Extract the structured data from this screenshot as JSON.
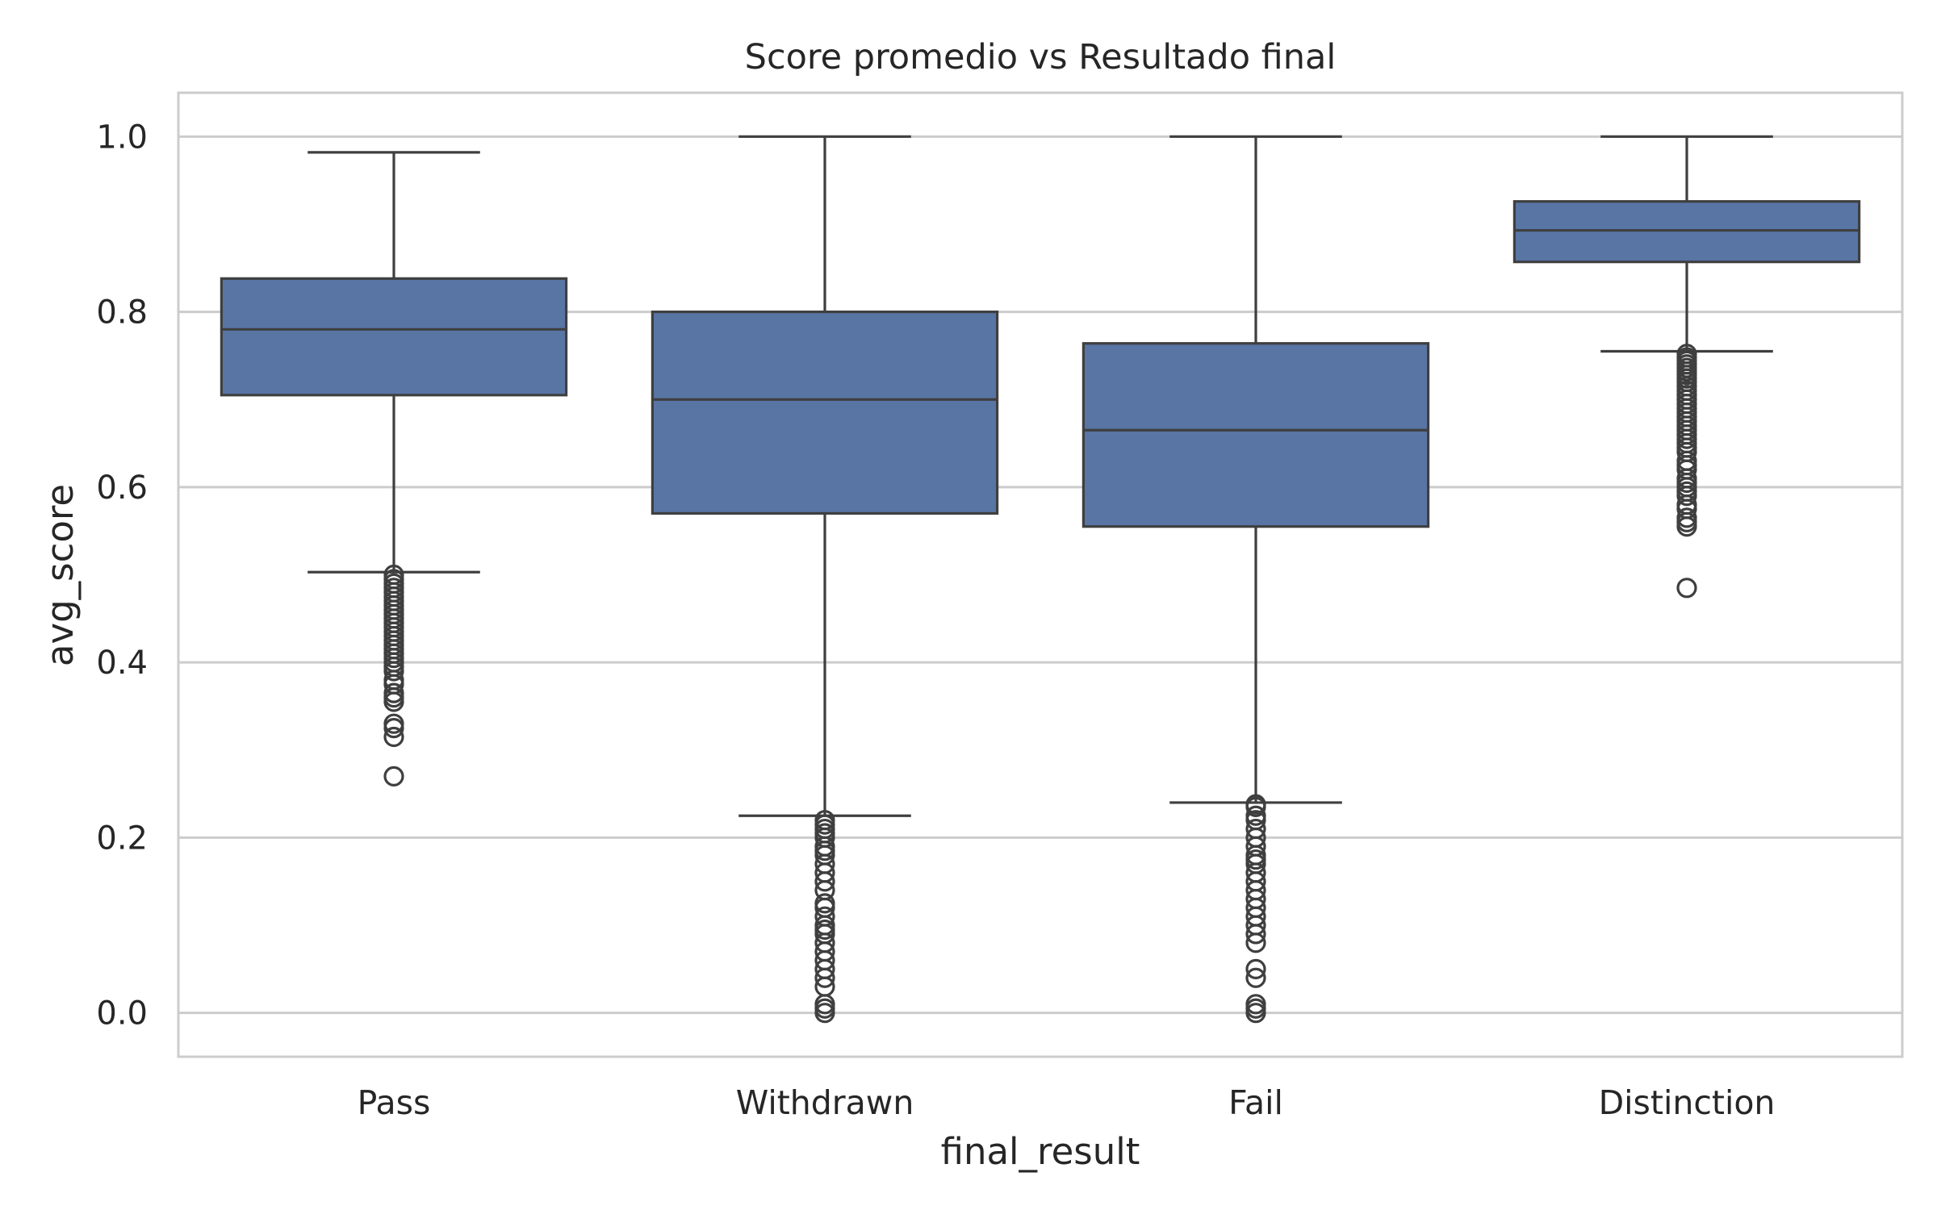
{
  "chart_data": {
    "type": "box",
    "title": "Score promedio vs Resultado final",
    "xlabel": "final_result",
    "ylabel": "avg_score",
    "ylim": [
      -0.05,
      1.05
    ],
    "yticks": [
      0.0,
      0.2,
      0.4,
      0.6,
      0.8,
      1.0
    ],
    "ytick_labels": [
      "0.0",
      "0.2",
      "0.4",
      "0.6",
      "0.8",
      "1.0"
    ],
    "grid": "horizontal",
    "categories": [
      "Pass",
      "Withdrawn",
      "Fail",
      "Distinction"
    ],
    "boxes": [
      {
        "category": "Pass",
        "whisker_low": 0.503,
        "q1": 0.705,
        "median": 0.78,
        "q3": 0.838,
        "whisker_high": 0.982,
        "outliers": [
          0.5,
          0.495,
          0.49,
          0.485,
          0.48,
          0.475,
          0.47,
          0.465,
          0.46,
          0.455,
          0.45,
          0.445,
          0.44,
          0.435,
          0.43,
          0.425,
          0.42,
          0.415,
          0.41,
          0.405,
          0.4,
          0.395,
          0.39,
          0.38,
          0.375,
          0.365,
          0.36,
          0.355,
          0.33,
          0.325,
          0.315,
          0.27
        ]
      },
      {
        "category": "Withdrawn",
        "whisker_low": 0.225,
        "q1": 0.57,
        "median": 0.7,
        "q3": 0.8,
        "whisker_high": 1.0,
        "outliers": [
          0.22,
          0.215,
          0.21,
          0.205,
          0.2,
          0.19,
          0.185,
          0.18,
          0.17,
          0.16,
          0.15,
          0.14,
          0.125,
          0.12,
          0.11,
          0.1,
          0.095,
          0.09,
          0.08,
          0.07,
          0.06,
          0.05,
          0.04,
          0.03,
          0.01,
          0.005,
          0.0
        ]
      },
      {
        "category": "Fail",
        "whisker_low": 0.24,
        "q1": 0.555,
        "median": 0.665,
        "q3": 0.764,
        "whisker_high": 1.0,
        "outliers": [
          0.238,
          0.235,
          0.225,
          0.22,
          0.21,
          0.2,
          0.19,
          0.18,
          0.175,
          0.17,
          0.16,
          0.15,
          0.14,
          0.13,
          0.12,
          0.11,
          0.1,
          0.09,
          0.08,
          0.05,
          0.04,
          0.01,
          0.005,
          0.0
        ]
      },
      {
        "category": "Distinction",
        "whisker_low": 0.755,
        "q1": 0.857,
        "median": 0.893,
        "q3": 0.926,
        "whisker_high": 1.0,
        "outliers": [
          0.752,
          0.748,
          0.744,
          0.74,
          0.736,
          0.732,
          0.728,
          0.724,
          0.72,
          0.715,
          0.71,
          0.705,
          0.7,
          0.695,
          0.69,
          0.685,
          0.68,
          0.675,
          0.67,
          0.665,
          0.66,
          0.655,
          0.65,
          0.645,
          0.64,
          0.63,
          0.625,
          0.62,
          0.61,
          0.605,
          0.6,
          0.595,
          0.59,
          0.58,
          0.575,
          0.565,
          0.56,
          0.555,
          0.485
        ]
      }
    ],
    "colors": {
      "box_fill": "#5875a4",
      "line": "#3f3f3f",
      "grid": "#cccccc",
      "frame": "#cccccc",
      "text": "#262626"
    }
  }
}
